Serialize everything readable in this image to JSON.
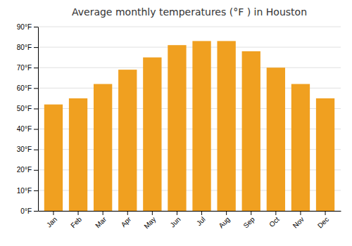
{
  "chart_data": {
    "type": "bar",
    "title": "Average monthly temperatures (°F ) in Houston",
    "categories": [
      "Jan",
      "Feb",
      "Mar",
      "Apr",
      "May",
      "Jun",
      "Jul",
      "Aug",
      "Sep",
      "Oct",
      "Nov",
      "Dec"
    ],
    "values": [
      52,
      55,
      62,
      69,
      75,
      81,
      83,
      83,
      78,
      70,
      62,
      55
    ],
    "color": "#F0A020",
    "ylim": [
      0,
      90
    ],
    "yticks": [
      {
        "value": 0,
        "label": "0°F"
      },
      {
        "value": 10,
        "label": "10°F"
      },
      {
        "value": 20,
        "label": "20°F"
      },
      {
        "value": 30,
        "label": "30°F"
      },
      {
        "value": 40,
        "label": "40°F"
      },
      {
        "value": 50,
        "label": "50°F"
      },
      {
        "value": 60,
        "label": "60°F"
      },
      {
        "value": 70,
        "label": "70°F"
      },
      {
        "value": 80,
        "label": "80°F"
      },
      {
        "value": 90,
        "label": "90°F"
      }
    ],
    "grid": true
  }
}
